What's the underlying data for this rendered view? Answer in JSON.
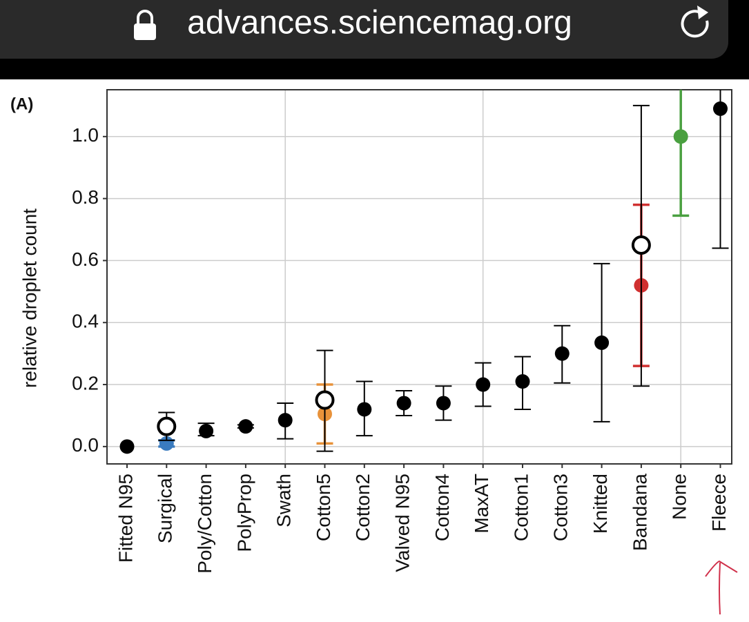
{
  "browser": {
    "url": "advances.sciencemag.org"
  },
  "chart_data": {
    "type": "scatter",
    "panel_label": "(A)",
    "y_label": "relative droplet count",
    "categories": [
      "Fitted N95",
      "Surgical",
      "Poly/Cotton",
      "PolyProp",
      "Swath",
      "Cotton5",
      "Cotton2",
      "Valved N95",
      "Cotton4",
      "MaxAT",
      "Cotton1",
      "Cotton3",
      "Knitted",
      "Bandana",
      "None",
      "Fleece"
    ],
    "series": [
      {
        "marker": "filled",
        "colors": [
          "#000000",
          "#3a7bbf",
          "#000000",
          "#000000",
          "#000000",
          "#e8923a",
          "#000000",
          "#000000",
          "#000000",
          "#000000",
          "#000000",
          "#000000",
          "#000000",
          "#d03030",
          "#4aa040",
          "#000000"
        ],
        "values": [
          0.0,
          0.01,
          0.05,
          0.065,
          0.085,
          0.105,
          0.12,
          0.14,
          0.14,
          0.2,
          0.21,
          0.3,
          0.335,
          0.52,
          1.0,
          1.09
        ],
        "err_low": [
          null,
          0.0,
          0.035,
          0.06,
          0.025,
          0.01,
          0.035,
          0.1,
          0.085,
          0.13,
          0.12,
          0.205,
          0.08,
          0.26,
          0.745,
          0.64
        ],
        "err_high": [
          null,
          0.02,
          0.075,
          0.07,
          0.14,
          0.2,
          0.21,
          0.18,
          0.195,
          0.27,
          0.29,
          0.39,
          0.59,
          0.78,
          1.16,
          1.16
        ]
      },
      {
        "marker": "open",
        "color": "#000000",
        "values": [
          null,
          0.065,
          null,
          null,
          null,
          0.15,
          null,
          null,
          null,
          null,
          null,
          null,
          null,
          0.65,
          null,
          null
        ],
        "err_low": [
          null,
          0.02,
          null,
          null,
          null,
          -0.015,
          null,
          null,
          null,
          null,
          null,
          null,
          null,
          0.195,
          null,
          null
        ],
        "err_high": [
          null,
          0.11,
          null,
          null,
          null,
          0.31,
          null,
          null,
          null,
          null,
          null,
          null,
          null,
          1.1,
          null,
          null
        ]
      }
    ],
    "ylim": [
      -0.056,
      1.151
    ],
    "yticks": [
      {
        "value": 0,
        "label": "0.0"
      },
      0.2,
      0.4,
      0.6,
      0.8,
      {
        "value": 1,
        "label": "1.0"
      }
    ],
    "grid": true
  }
}
